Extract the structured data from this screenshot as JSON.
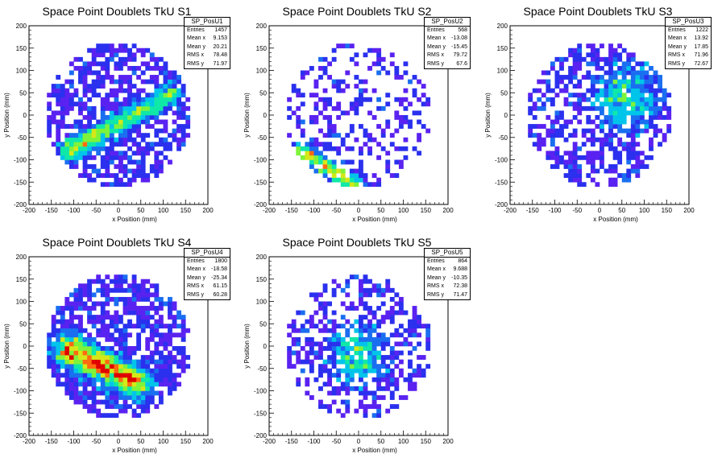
{
  "palette": [
    "#5a22f0",
    "#2a30ee",
    "#1a6ef0",
    "#00c4ea",
    "#10e8a8",
    "#7ef33a",
    "#d4e818",
    "#ff6a10",
    "#e00000"
  ],
  "axis": {
    "xlabel": "x Position (mm)",
    "ylabel": "y Position (mm)",
    "ticks": [
      "-200",
      "-150",
      "-100",
      "-50",
      "0",
      "50",
      "100",
      "150",
      "200"
    ],
    "tick_values": [
      -200,
      -150,
      -100,
      -50,
      0,
      50,
      100,
      150,
      200
    ]
  },
  "chart_data": [
    {
      "type": "heatmap",
      "title": "Space Point Doublets TkU S1",
      "xlabel": "x Position (mm)",
      "ylabel": "y Position (mm)",
      "xlim": [
        -200,
        200
      ],
      "ylim": [
        -200,
        200
      ],
      "stats": {
        "name": "SP_PosU1",
        "entries": "1457",
        "mean_x": "9.153",
        "mean_y": "20.21",
        "rms_x": "78.48",
        "rms_y": "71.97"
      },
      "cluster": {
        "kind": "band",
        "x0": -110,
        "y0": -80,
        "x1": 115,
        "y1": 45,
        "w": 16,
        "peak": 5
      },
      "fill": 0.62,
      "seed": 11
    },
    {
      "type": "heatmap",
      "title": "Space Point Doublets TkU S2",
      "xlabel": "x Position (mm)",
      "ylabel": "y Position (mm)",
      "xlim": [
        -200,
        200
      ],
      "ylim": [
        -200,
        200
      ],
      "stats": {
        "name": "SP_PosU2",
        "entries": "568",
        "mean_x": "-13.08",
        "mean_y": "-15.45",
        "rms_x": "79.72",
        "rms_y": "67.6"
      },
      "cluster": {
        "kind": "band",
        "x0": -130,
        "y0": -80,
        "x1": -10,
        "y1": -155,
        "w": 12,
        "peak": 6
      },
      "fill": 0.3,
      "seed": 23
    },
    {
      "type": "heatmap",
      "title": "Space Point Doublets TkU S3",
      "xlabel": "x Position (mm)",
      "ylabel": "y Position (mm)",
      "xlim": [
        -200,
        200
      ],
      "ylim": [
        -200,
        200
      ],
      "stats": {
        "name": "SP_PosU3",
        "entries": "1222",
        "mean_x": "13.92",
        "mean_y": "17.85",
        "rms_x": "71.96",
        "rms_y": "72.67"
      },
      "cluster": {
        "kind": "blob",
        "x0": 60,
        "y0": 40,
        "w": 45,
        "peak": 4
      },
      "fill": 0.55,
      "seed": 37
    },
    {
      "type": "heatmap",
      "title": "Space Point Doublets TkU S4",
      "xlabel": "x Position (mm)",
      "ylabel": "y Position (mm)",
      "xlim": [
        -200,
        200
      ],
      "ylim": [
        -200,
        200
      ],
      "stats": {
        "name": "SP_PosU4",
        "entries": "1800",
        "mean_x": "-18.58",
        "mean_y": "-25.34",
        "rms_x": "61.15",
        "rms_y": "60.28"
      },
      "cluster": {
        "kind": "band",
        "x0": -110,
        "y0": -10,
        "x1": 40,
        "y1": -80,
        "w": 22,
        "peak": 8
      },
      "fill": 0.72,
      "seed": 51
    },
    {
      "type": "heatmap",
      "title": "Space Point Doublets TkU S5",
      "xlabel": "x Position (mm)",
      "ylabel": "y Position (mm)",
      "xlim": [
        -200,
        200
      ],
      "ylim": [
        -200,
        200
      ],
      "stats": {
        "name": "SP_PosU5",
        "entries": "864",
        "mean_x": "9.688",
        "mean_y": "-10.35",
        "rms_x": "72.38",
        "rms_y": "71.47"
      },
      "cluster": {
        "kind": "blob",
        "x0": 0,
        "y0": -20,
        "w": 40,
        "peak": 4
      },
      "fill": 0.45,
      "seed": 67
    }
  ],
  "stat_labels": {
    "entries": "Entries",
    "mean_x": "Mean x",
    "mean_y": "Mean y",
    "rms_x": "RMS x",
    "rms_y": "RMS y"
  }
}
